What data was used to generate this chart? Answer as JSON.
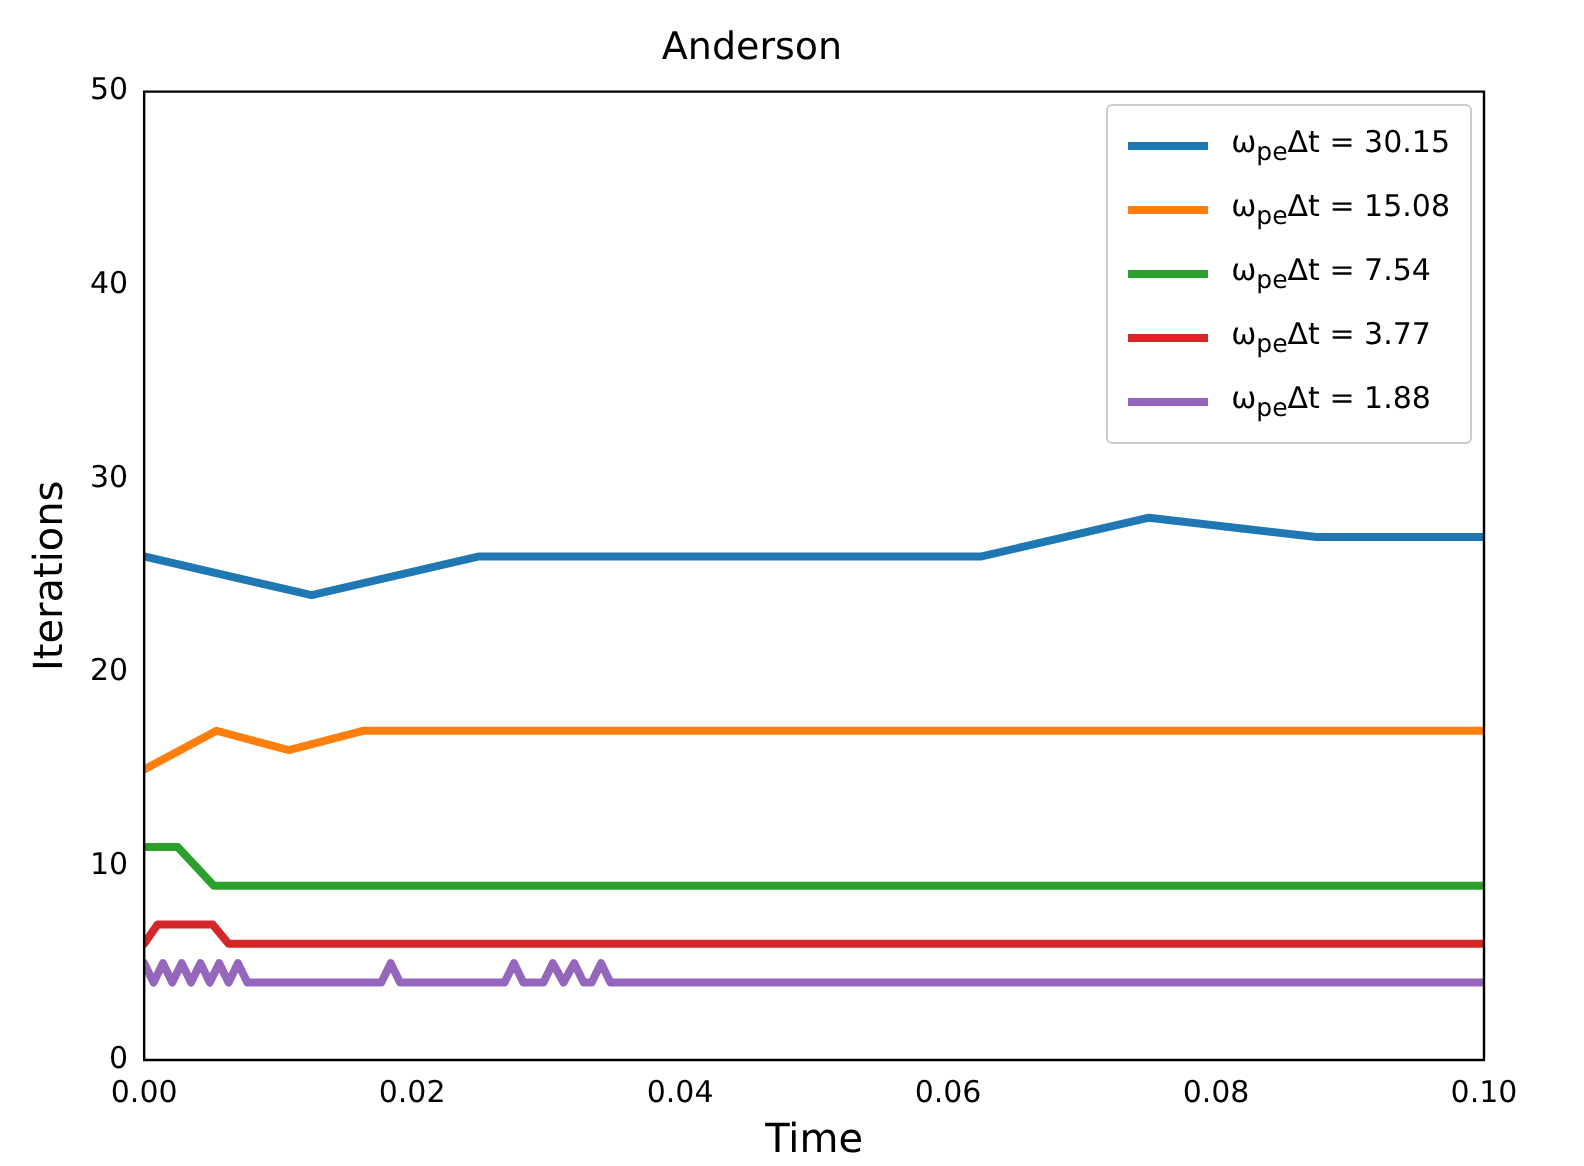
{
  "chart_data": {
    "type": "line",
    "title": "Anderson",
    "xlabel": "Time",
    "ylabel": "Iterations",
    "xlim": [
      0,
      0.1
    ],
    "xticks": [
      {
        "value": 0,
        "label": "0.00"
      },
      {
        "value": 0.02,
        "label": "0.02"
      },
      {
        "value": 0.04,
        "label": "0.04"
      },
      {
        "value": 0.06,
        "label": "0.06"
      },
      {
        "value": 0.08,
        "label": "0.08"
      },
      {
        "value": 0.1,
        "label": "0.10"
      }
    ],
    "ylim": [
      0,
      50
    ],
    "yticks": [
      0,
      10,
      20,
      30,
      40,
      50
    ],
    "grid": false,
    "legend": "top right",
    "line_style": "solid",
    "marker": "none",
    "series": [
      {
        "name": "ω$_{pe}$Δt = 30.15",
        "color": "#1f77b4",
        "x": [
          0,
          0.0125,
          0.025,
          0.0375,
          0.05,
          0.0625,
          0.075,
          0.0875,
          0.1
        ],
        "values": [
          26,
          24,
          26,
          26,
          26,
          26,
          28,
          27,
          27
        ]
      },
      {
        "name": "ω$_{pe}$Δt = 15.08",
        "color": "#ff7f0e",
        "x": [
          0,
          0.0054,
          0.0108,
          0.0164,
          0.1
        ],
        "values": [
          15,
          17,
          16,
          17,
          17
        ]
      },
      {
        "name": "ω$_{pe}$Δt = 7.54",
        "color": "#2ca02c",
        "x": [
          0,
          0.0025,
          0.0052,
          0.1
        ],
        "values": [
          11,
          11,
          9,
          9
        ]
      },
      {
        "name": "ω$_{pe}$Δt = 3.77",
        "color": "#d62728",
        "x": [
          0,
          0.001,
          0.0051,
          0.0063,
          0.1
        ],
        "values": [
          6,
          7,
          7,
          6,
          6
        ]
      },
      {
        "name": "ω$_{pe}$Δt = 1.88",
        "color": "#9467bd",
        "x": [
          0,
          0.0007,
          0.0014,
          0.0021,
          0.0028,
          0.0035,
          0.0042,
          0.0049,
          0.0056,
          0.0063,
          0.007,
          0.0077,
          0.0177,
          0.0184,
          0.0191,
          0.0269,
          0.0276,
          0.0283,
          0.0298,
          0.0305,
          0.0313,
          0.0321,
          0.0328,
          0.0334,
          0.0341,
          0.0348,
          0.1
        ],
        "values": [
          5,
          4,
          5,
          4,
          5,
          4,
          5,
          4,
          5,
          4,
          5,
          4,
          4,
          5,
          4,
          4,
          5,
          4,
          4,
          5,
          4,
          5,
          4,
          4,
          5,
          4,
          4
        ]
      }
    ]
  }
}
